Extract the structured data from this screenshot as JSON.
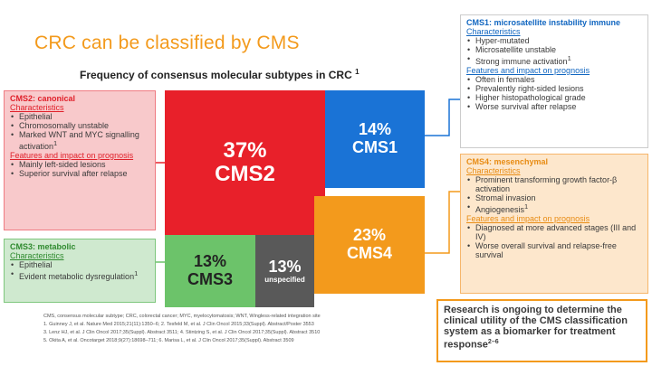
{
  "slide": {
    "title": "CRC can be classified by CMS",
    "subtitle": "Frequency of consensus molecular subtypes in CRC",
    "subtitle_ref": "1"
  },
  "colors": {
    "title": "#f39a1c",
    "cms1": "#1a73d6",
    "cms2": "#e8202a",
    "cms3": "#6cc36a",
    "cms4": "#f39a1c",
    "unspecified": "#595959"
  },
  "blocks": {
    "cms2": {
      "percent": "37%",
      "label": "CMS2"
    },
    "cms1": {
      "percent": "14%",
      "label": "CMS1"
    },
    "cms4": {
      "percent": "23%",
      "label": "CMS4"
    },
    "cms3": {
      "percent": "13%",
      "label": "CMS3"
    },
    "unspecified": {
      "percent": "13%",
      "label": "unspecified"
    }
  },
  "panels": {
    "cms2": {
      "heading": "CMS2: canonical",
      "char_heading": "Characteristics",
      "chars": [
        "Epithelial",
        "Chromosomally unstable",
        "Marked WNT and MYC signalling activation"
      ],
      "chars_ref": "1",
      "impact_heading": "Features and impact on prognosis",
      "impact": [
        "Mainly left-sided lesions",
        "Superior survival after relapse"
      ]
    },
    "cms3": {
      "heading": "CMS3: metabolic",
      "char_heading": "Characteristics",
      "chars": [
        "Epithelial",
        "Evident metabolic dysregulation"
      ],
      "chars_ref": "1"
    },
    "cms1": {
      "heading": "CMS1: microsatellite instability immune",
      "char_heading": "Characteristics",
      "chars": [
        "Hyper-mutated",
        "Microsatellite unstable",
        "Strong immune activation"
      ],
      "chars_ref": "1",
      "impact_heading": "Features and impact on prognosis",
      "impact": [
        "Often in females",
        "Prevalently right-sided lesions",
        "Higher histopathological grade",
        "Worse survival after relapse"
      ]
    },
    "cms4": {
      "heading": "CMS4: mesenchymal",
      "char_heading": "Characteristics",
      "chars": [
        "Prominent transforming growth factor-β activation",
        "Stromal invasion",
        "Angiogenesis"
      ],
      "chars_ref": "1",
      "impact_heading": "Features and impact on prognosis",
      "impact": [
        "Diagnosed at more advanced stages (III and IV)",
        "Worse overall survival and relapse-free survival"
      ]
    }
  },
  "research": {
    "text": "Research is ongoing to determine the clinical utility of the CMS classification system as a biomarker for treatment response",
    "ref": "2–6"
  },
  "footer": {
    "abbreviations": "CMS, consensus molecular subtype; CRC, colorectal cancer; MYC, myelocytomatosis; WNT, Wingless-related integration site",
    "refs": [
      "1. Guinney J, et al. Nature Med 2015;21(11):1350–6; 2. Tesfeld M, et al. J Clin Oncol 2015;33(Suppl). Abstract/Poster 3553",
      "3. Lenz HJ, et al. J Clin Oncol 2017;35(Suppl). Abstract 3511; 4. Stintzing S, et al. J Clin Oncol 2017;35(Suppl). Abstract 3510",
      "5. Okita A, et al. Oncotarget 2018;9(27):18698–711; 6. Marisa L, et al. J Clin Oncol 2017;35(Suppl). Abstract 3509"
    ]
  }
}
